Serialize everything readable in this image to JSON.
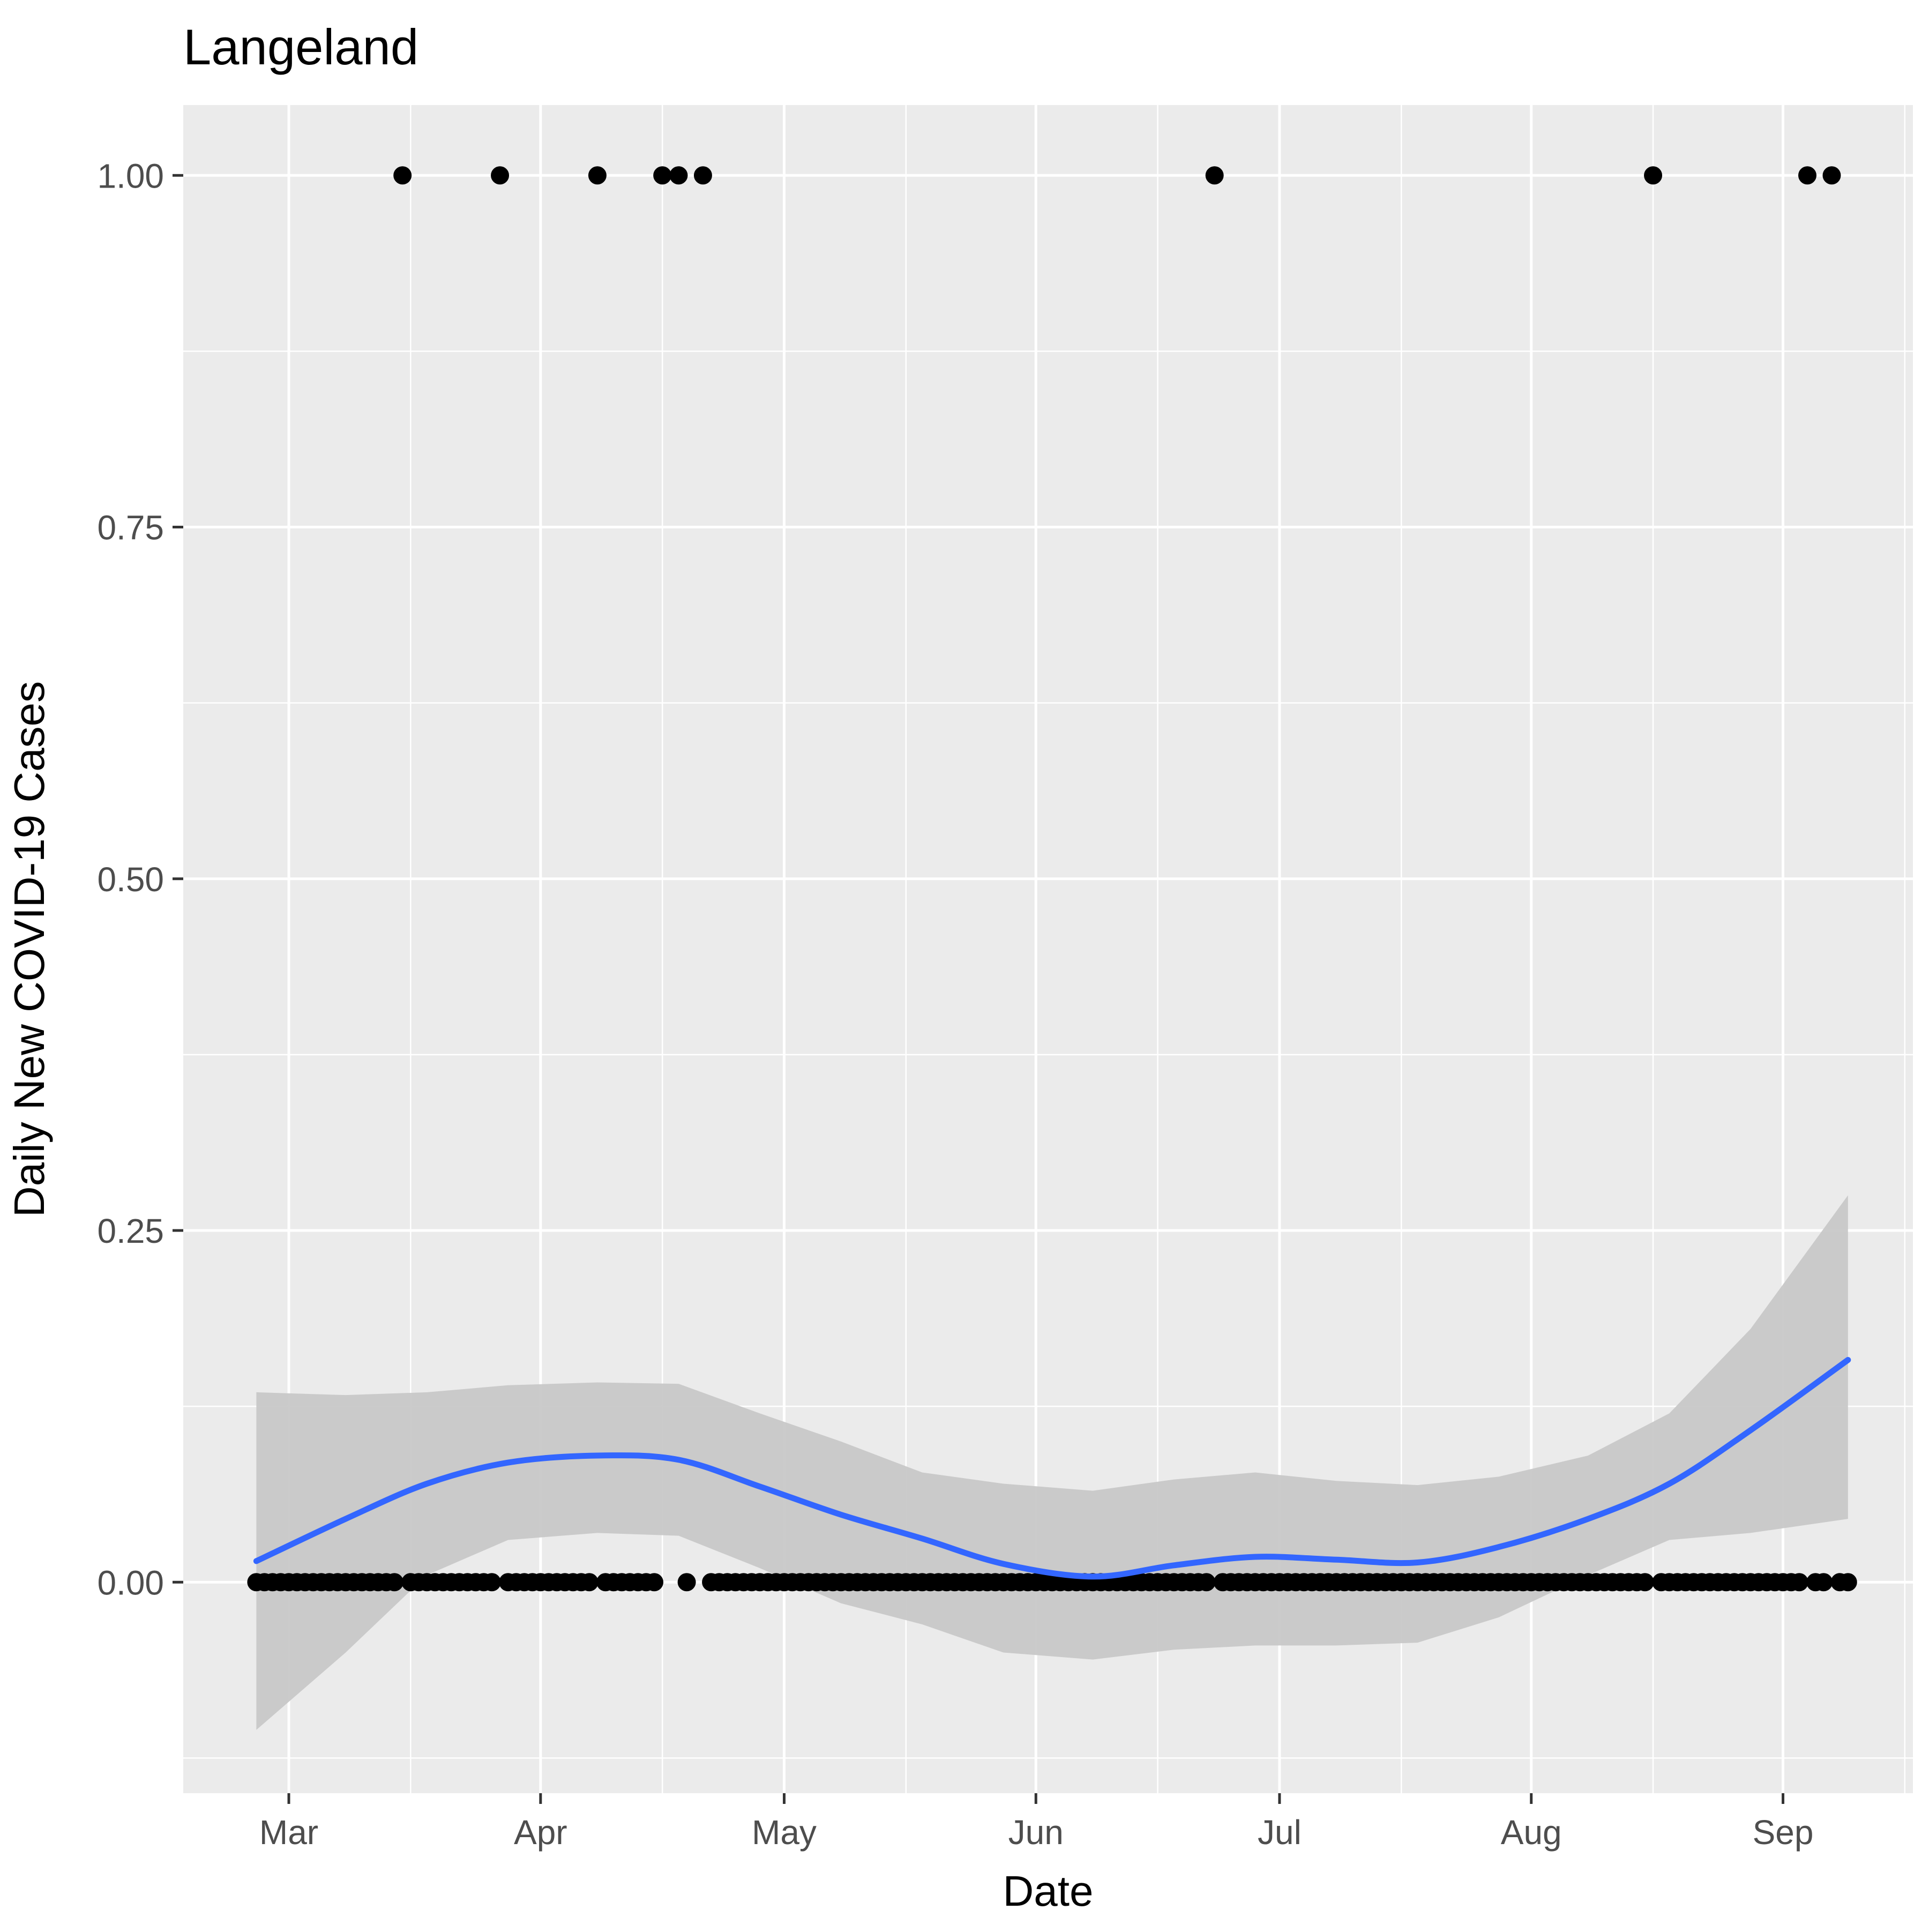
{
  "chart_data": {
    "type": "scatter",
    "title": "Langeland",
    "xlabel": "Date",
    "ylabel": "Daily New COVID-19 Cases",
    "x_tick_labels": [
      "Mar",
      "Apr",
      "May",
      "Jun",
      "Jul",
      "Aug",
      "Sep"
    ],
    "x_tick_dates": [
      "2020-03-01",
      "2020-04-01",
      "2020-05-01",
      "2020-06-01",
      "2020-07-01",
      "2020-08-01",
      "2020-09-01"
    ],
    "y_tick_labels": [
      "0.00",
      "0.25",
      "0.50",
      "0.75",
      "1.00"
    ],
    "y_ticks": [
      0,
      0.25,
      0.5,
      0.75,
      1.0
    ],
    "xlim": [
      "2020-02-17",
      "2020-09-17"
    ],
    "ylim": [
      -0.15,
      1.05
    ],
    "grid": true,
    "colors": {
      "panel_background": "#ebebeb",
      "grid": "#ffffff",
      "points": "#000000",
      "smooth_line": "#3366ff",
      "confidence_band": "#c8c8c8"
    },
    "series": [
      {
        "type": "points",
        "date_range": [
          "2020-02-26",
          "2020-09-09"
        ],
        "default_value": 0,
        "value_one_dates": [
          "2020-03-15",
          "2020-03-27",
          "2020-04-08",
          "2020-04-16",
          "2020-04-18",
          "2020-04-21",
          "2020-06-23",
          "2020-08-16",
          "2020-09-04",
          "2020-09-07"
        ],
        "gap_dates": [
          "2020-04-17",
          "2020-04-20"
        ]
      },
      {
        "type": "loess-smooth",
        "x": [
          "2020-02-26",
          "2020-03-08",
          "2020-03-18",
          "2020-03-28",
          "2020-04-08",
          "2020-04-18",
          "2020-04-28",
          "2020-05-08",
          "2020-05-18",
          "2020-05-28",
          "2020-06-08",
          "2020-06-18",
          "2020-06-28",
          "2020-07-08",
          "2020-07-18",
          "2020-07-28",
          "2020-08-08",
          "2020-08-18",
          "2020-08-28",
          "2020-09-09"
        ],
        "y": [
          0.015,
          0.045,
          0.07,
          0.085,
          0.09,
          0.087,
          0.068,
          0.048,
          0.031,
          0.013,
          0.004,
          0.012,
          0.018,
          0.016,
          0.014,
          0.025,
          0.045,
          0.07,
          0.108,
          0.158
        ],
        "lower": [
          -0.105,
          -0.05,
          0.005,
          0.03,
          0.035,
          0.033,
          0.01,
          -0.015,
          -0.03,
          -0.05,
          -0.055,
          -0.048,
          -0.045,
          -0.045,
          -0.043,
          -0.025,
          0.005,
          0.03,
          0.035,
          0.045
        ],
        "upper": [
          0.135,
          0.133,
          0.135,
          0.14,
          0.142,
          0.141,
          0.12,
          0.1,
          0.078,
          0.07,
          0.065,
          0.073,
          0.078,
          0.072,
          0.069,
          0.075,
          0.09,
          0.12,
          0.18,
          0.275
        ]
      }
    ]
  }
}
